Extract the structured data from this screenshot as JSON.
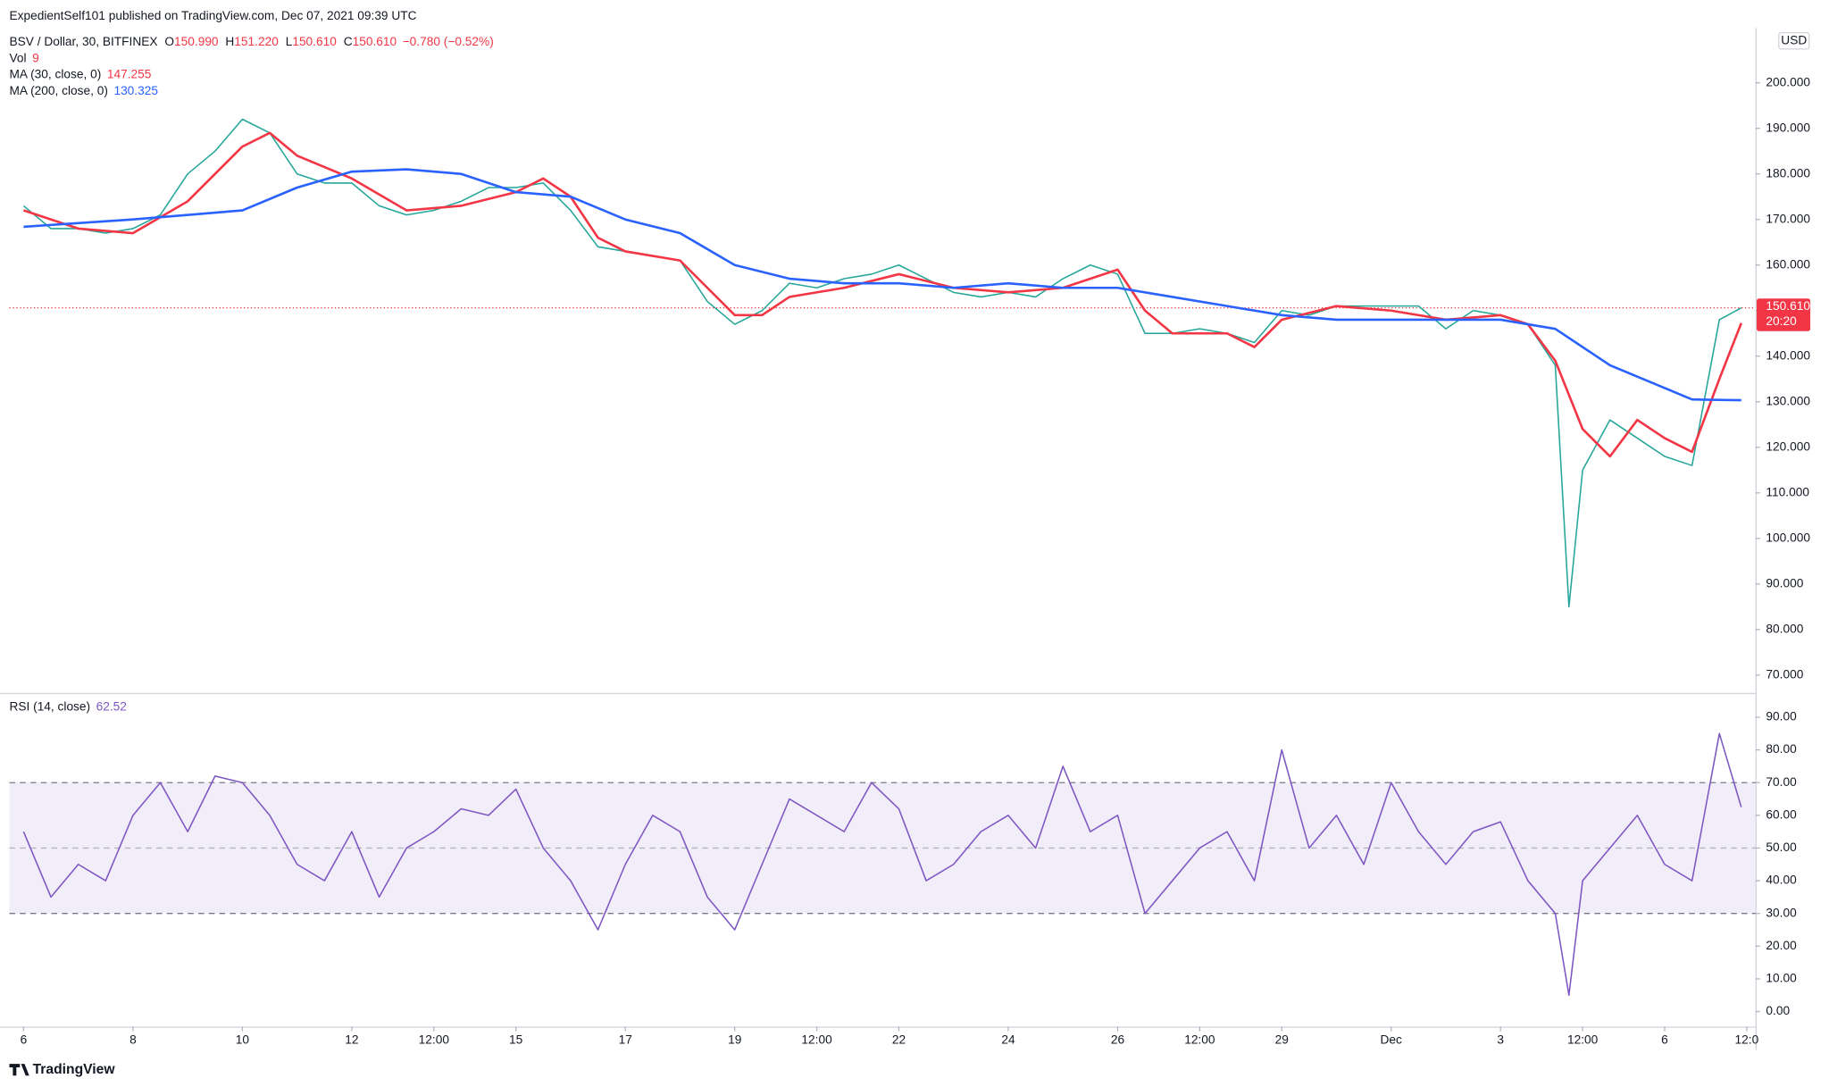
{
  "header": {
    "publisher": "ExpedientSelf101 published on TradingView.com, Dec 07, 2021 09:39 UTC",
    "currency": "USD",
    "brand": "TradingView"
  },
  "chart_data": [
    {
      "type": "line",
      "title": "BSV / Dollar, 30, BITFINEX",
      "ohlc": [
        {
          "label": "O",
          "value": "150.990"
        },
        {
          "label": "H",
          "value": "151.220"
        },
        {
          "label": "L",
          "value": "150.610"
        },
        {
          "label": "C",
          "value": "150.610"
        }
      ],
      "change": "−0.780 (−0.52%)",
      "indicators": [
        {
          "name": "Vol",
          "value": "9"
        }
      ],
      "last_price": {
        "value": 150.61,
        "label": "150.610",
        "countdown": "20:20",
        "color": "#f23645"
      },
      "xlim": [
        -0.26,
        31.66
      ],
      "ylim": [
        66.6,
        211
      ],
      "yticks": [
        {
          "value": 70,
          "label": "70.000"
        },
        {
          "value": 80,
          "label": "80.000"
        },
        {
          "value": 90,
          "label": "90.000"
        },
        {
          "value": 100,
          "label": "100.000"
        },
        {
          "value": 110,
          "label": "110.000"
        },
        {
          "value": 120,
          "label": "120.000"
        },
        {
          "value": 130,
          "label": "130.000"
        },
        {
          "value": 140,
          "label": "140.000"
        },
        {
          "value": 150,
          "label": "150.000"
        },
        {
          "value": 160,
          "label": "160.000"
        },
        {
          "value": 170,
          "label": "170.000"
        },
        {
          "value": 180,
          "label": "180.000"
        },
        {
          "value": 190,
          "label": "190.000"
        },
        {
          "value": 200,
          "label": "200.000"
        }
      ],
      "series": [
        {
          "color": "#26a69a",
          "x": [
            0,
            0.5,
            1,
            1.5,
            2,
            2.5,
            3,
            3.5,
            4,
            4.5,
            5,
            5.5,
            6,
            6.5,
            7,
            7.5,
            8,
            8.5,
            9,
            9.5,
            10,
            10.5,
            11,
            11.5,
            12,
            12.5,
            13,
            13.5,
            14,
            14.5,
            15,
            15.5,
            16,
            16.5,
            17,
            17.5,
            18,
            18.5,
            19,
            19.5,
            20,
            20.5,
            21,
            21.5,
            22,
            22.5,
            23,
            23.5,
            24,
            24.5,
            25,
            25.5,
            26,
            26.5,
            27,
            27.5,
            28,
            28.25,
            28.5,
            29,
            29.5,
            30,
            30.5,
            31,
            31.4
          ],
          "values": [
            173,
            168,
            168,
            167,
            168,
            171,
            180,
            185,
            192,
            189,
            180,
            178,
            178,
            173,
            171,
            172,
            174,
            177,
            177,
            178,
            172,
            164,
            163,
            162,
            161,
            152,
            147,
            150,
            156,
            155,
            157,
            158,
            160,
            157,
            154,
            153,
            154,
            153,
            157,
            160,
            158,
            145,
            145,
            146,
            145,
            143,
            150,
            149,
            151,
            151,
            151,
            151,
            146,
            150,
            149,
            147,
            138,
            85,
            115,
            126,
            122,
            118,
            116,
            148,
            150.61
          ]
        },
        {
          "name": "MA (30, close, 0)",
          "legend_value": "147.255",
          "color": "#f23645",
          "x": [
            0,
            1,
            2,
            3,
            4,
            4.5,
            5,
            6,
            7,
            8,
            9,
            9.5,
            10,
            10.5,
            11,
            12,
            12.5,
            13,
            13.5,
            14,
            15,
            16,
            17,
            18,
            19,
            20,
            20.5,
            21,
            22,
            22.5,
            23,
            24,
            25,
            26,
            27,
            27.5,
            28,
            28.5,
            29,
            29.5,
            30,
            30.5,
            31,
            31.4
          ],
          "values": [
            172,
            168,
            167,
            174,
            186,
            189,
            184,
            179,
            172,
            173,
            176,
            179,
            175,
            166,
            163,
            161,
            155,
            149,
            149,
            153,
            155,
            158,
            155,
            154,
            155,
            159,
            150,
            145,
            145,
            142,
            148,
            151,
            150,
            148,
            149,
            147,
            139,
            124,
            118,
            126,
            122,
            119,
            135,
            147.255
          ]
        },
        {
          "name": "MA (200, close, 0)",
          "legend_value": "130.325",
          "color": "#2962ff",
          "x": [
            0,
            2,
            4,
            5,
            6,
            7,
            8,
            9,
            10,
            11,
            12,
            13,
            14,
            15,
            16,
            17,
            18,
            19,
            20,
            21,
            22,
            23,
            24,
            25,
            26,
            27,
            28,
            29,
            30,
            30.5,
            31.4
          ],
          "values": [
            168.4,
            170,
            172,
            177,
            180.5,
            181,
            180,
            176,
            175,
            170,
            167,
            160,
            157,
            156,
            156,
            155,
            156,
            155,
            155,
            153,
            151,
            149,
            148,
            148,
            148,
            148,
            146,
            138,
            133,
            130.5,
            130.325
          ]
        }
      ]
    },
    {
      "type": "line",
      "xlim": [
        -0.26,
        31.66
      ],
      "ylim": [
        -4.6,
        96
      ],
      "yticks": [
        {
          "value": 0,
          "label": "0.00"
        },
        {
          "value": 10,
          "label": "10.00"
        },
        {
          "value": 20,
          "label": "20.00"
        },
        {
          "value": 30,
          "label": "30.00"
        },
        {
          "value": 40,
          "label": "40.00"
        },
        {
          "value": 50,
          "label": "50.00"
        },
        {
          "value": 60,
          "label": "60.00"
        },
        {
          "value": 70,
          "label": "70.00"
        },
        {
          "value": 80,
          "label": "80.00"
        },
        {
          "value": 90,
          "label": "90.00"
        }
      ],
      "band": {
        "lower": 30,
        "middle": 50,
        "upper": 70
      },
      "xticks": [
        {
          "value": 0,
          "label": "6"
        },
        {
          "value": 2,
          "label": "8"
        },
        {
          "value": 4,
          "label": "10"
        },
        {
          "value": 6,
          "label": "12"
        },
        {
          "value": 7.5,
          "label": "12:00"
        },
        {
          "value": 9,
          "label": "15"
        },
        {
          "value": 11,
          "label": "17"
        },
        {
          "value": 13,
          "label": "19"
        },
        {
          "value": 14.5,
          "label": "12:00"
        },
        {
          "value": 16,
          "label": "22"
        },
        {
          "value": 18,
          "label": "24"
        },
        {
          "value": 20,
          "label": "26"
        },
        {
          "value": 21.5,
          "label": "12:00"
        },
        {
          "value": 23,
          "label": "29"
        },
        {
          "value": 25,
          "label": "Dec"
        },
        {
          "value": 27,
          "label": "3"
        },
        {
          "value": 28.5,
          "label": "12:00"
        },
        {
          "value": 30,
          "label": "6"
        },
        {
          "value": 31.5,
          "label": "12:0"
        }
      ],
      "series": [
        {
          "name": "RSI (14, close)",
          "legend_value": "62.52",
          "color": "#7e57c2",
          "x": [
            0,
            0.5,
            1,
            1.5,
            2,
            2.5,
            3,
            3.5,
            4,
            4.5,
            5,
            5.5,
            6,
            6.5,
            7,
            7.5,
            8,
            8.5,
            9,
            9.5,
            10,
            10.5,
            11,
            11.5,
            12,
            12.5,
            13,
            13.5,
            14,
            14.5,
            15,
            15.5,
            16,
            16.5,
            17,
            17.5,
            18,
            18.5,
            19,
            19.5,
            20,
            20.5,
            21,
            21.5,
            22,
            22.5,
            23,
            23.5,
            24,
            24.5,
            25,
            25.5,
            26,
            26.5,
            27,
            27.5,
            28,
            28.25,
            28.5,
            29,
            29.5,
            30,
            30.5,
            31,
            31.4
          ],
          "values": [
            55,
            35,
            45,
            40,
            60,
            70,
            55,
            72,
            70,
            60,
            45,
            40,
            55,
            35,
            50,
            55,
            62,
            60,
            68,
            50,
            40,
            25,
            45,
            60,
            55,
            35,
            25,
            45,
            65,
            60,
            55,
            70,
            62,
            40,
            45,
            55,
            60,
            50,
            75,
            55,
            60,
            30,
            40,
            50,
            55,
            40,
            80,
            50,
            60,
            45,
            70,
            55,
            45,
            55,
            58,
            40,
            30,
            5,
            40,
            50,
            60,
            45,
            40,
            85,
            62.52
          ]
        }
      ]
    }
  ]
}
